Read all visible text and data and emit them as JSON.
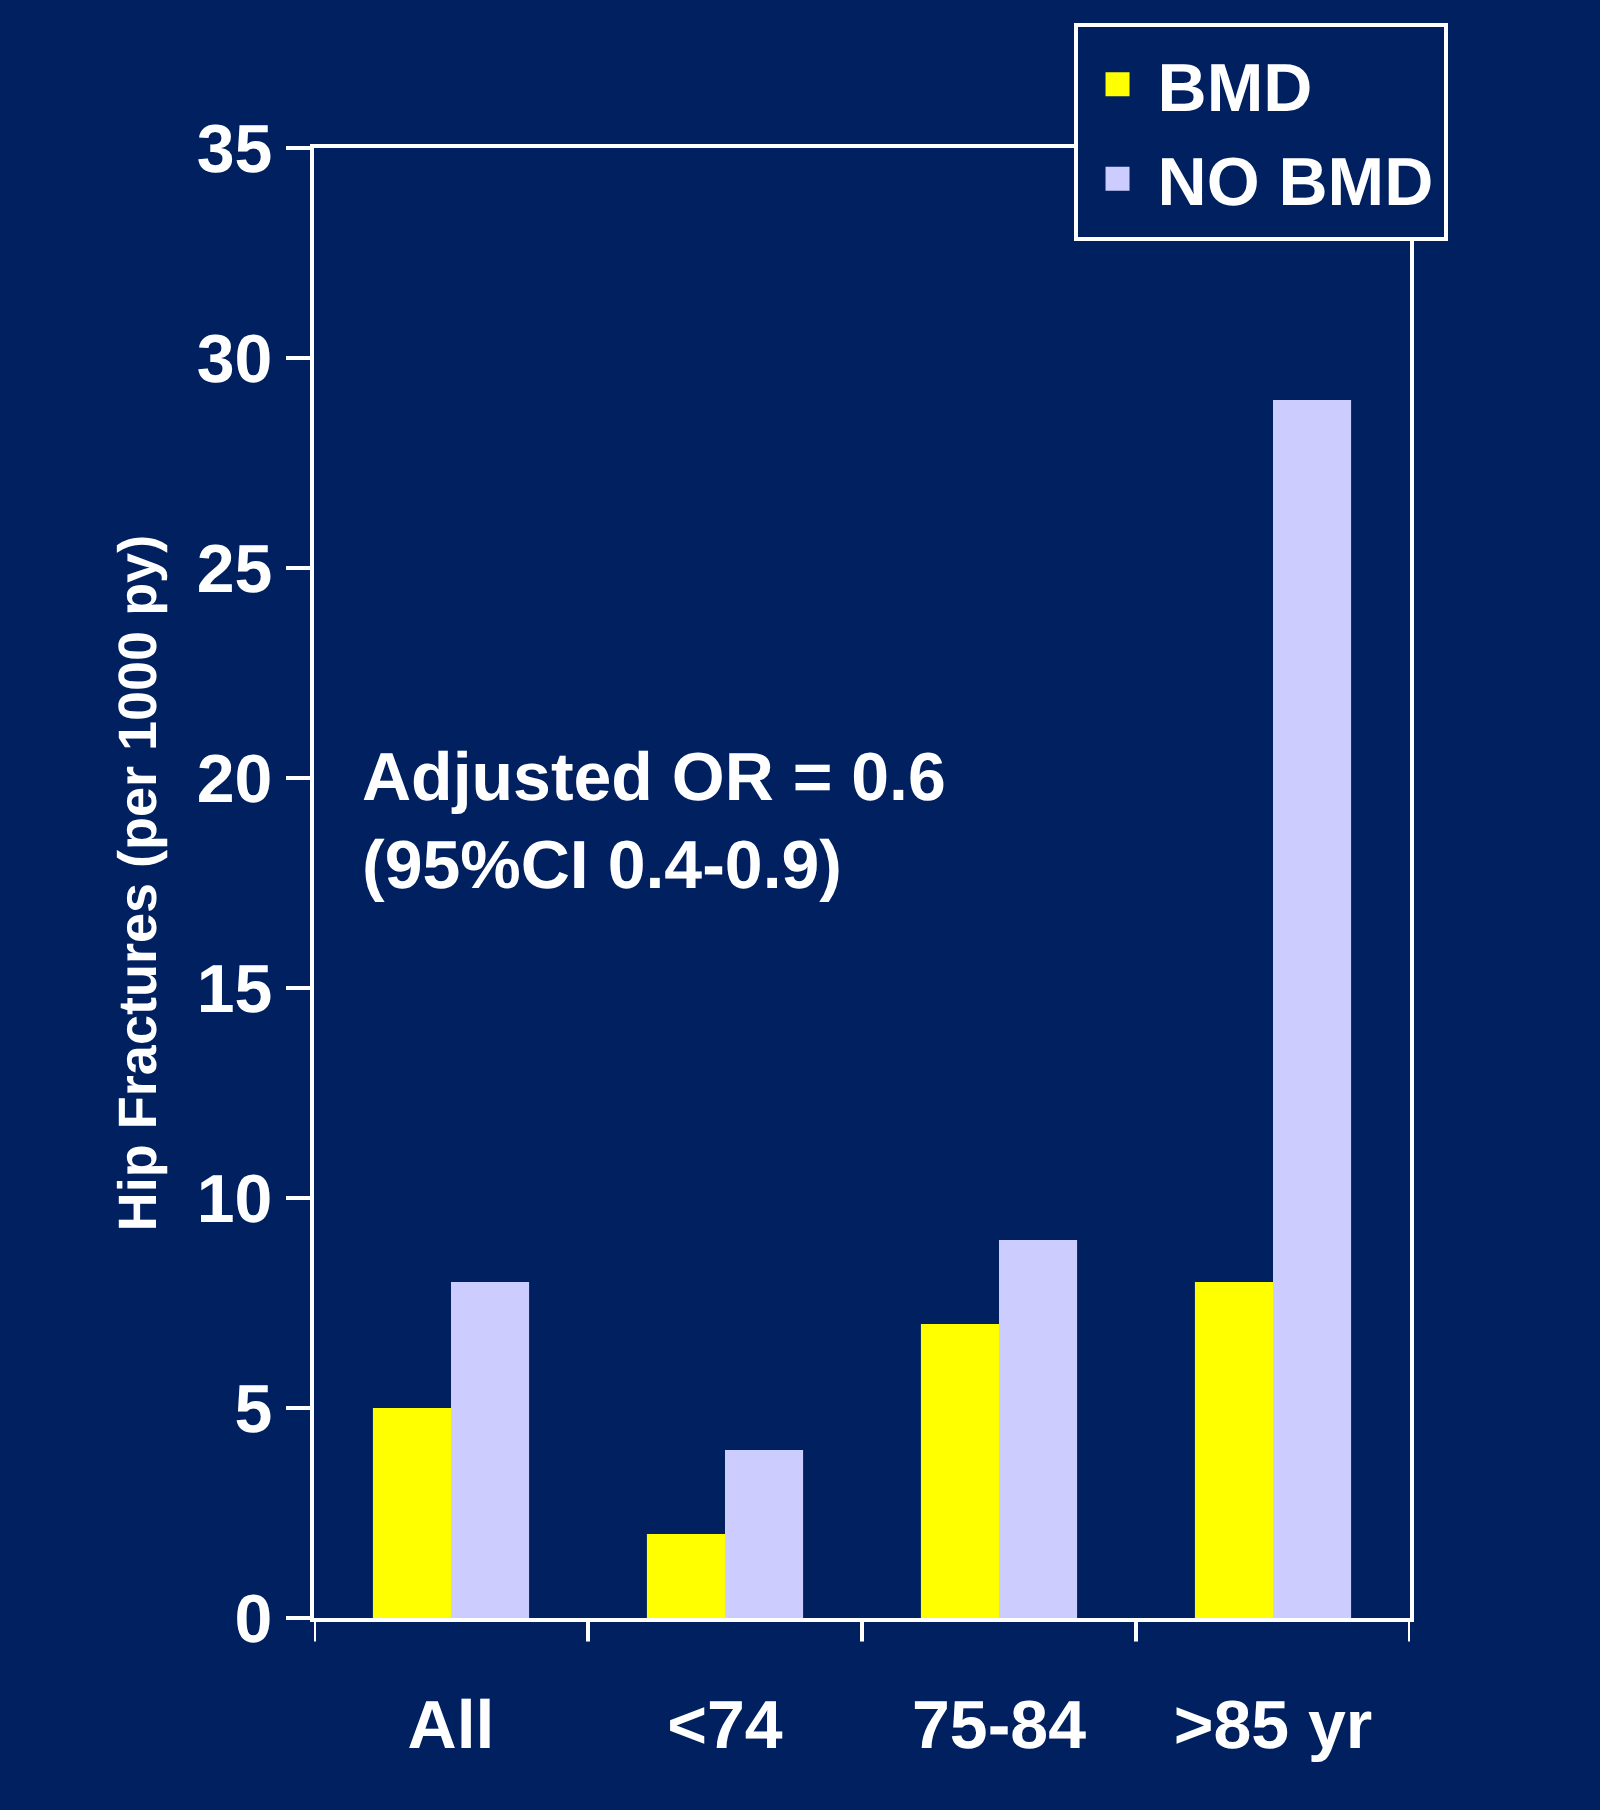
{
  "chart_data": {
    "type": "bar",
    "ylabel": "Hip Fractures (per 1000 py)",
    "categories": [
      "All",
      "<74",
      "75-84",
      ">85 yr"
    ],
    "series": [
      {
        "name": "BMD",
        "color": "#ffff00",
        "values": [
          5,
          2,
          7,
          8
        ]
      },
      {
        "name": "NO BMD",
        "color": "#ccccff",
        "values": [
          8,
          4,
          9,
          29
        ]
      }
    ],
    "ylim": [
      0,
      35
    ],
    "yticks": [
      0,
      5,
      10,
      15,
      20,
      25,
      30,
      35
    ],
    "grid": false,
    "legend": "top right",
    "annotations": [
      "Adjusted OR = 0.6\n(95%CI 0.4-0.9)"
    ]
  }
}
